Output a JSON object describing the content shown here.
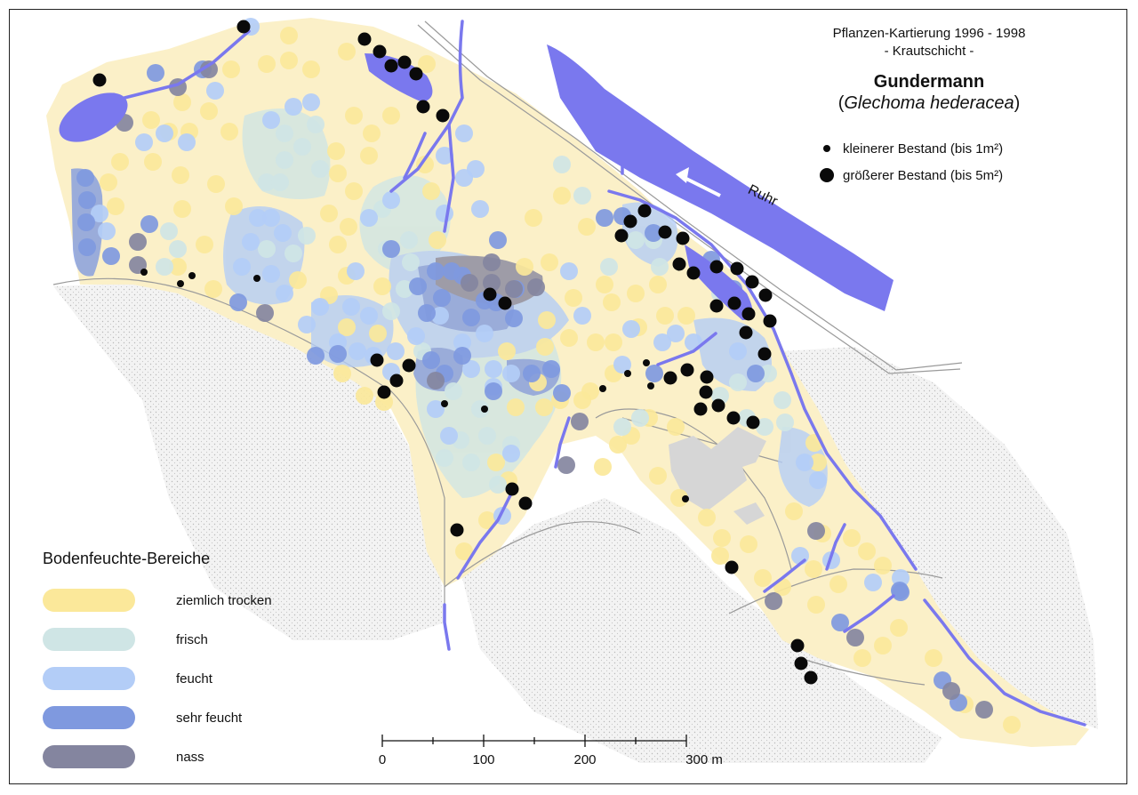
{
  "header": {
    "line1": "Pflanzen-Kartierung 1996 - 1998",
    "line2": "- Krautschicht -",
    "species": "Gundermann",
    "latin_open": "(",
    "latin_name": "Glechoma hederacea",
    "latin_close": ")"
  },
  "dot_legend": [
    {
      "label": "kleinerer Bestand (bis 1m²)",
      "size": "small"
    },
    {
      "label": "größerer Bestand (bis 5m²)",
      "size": "large"
    }
  ],
  "river_label": "Ruhr",
  "moisture_legend": {
    "title": "Bodenfeuchte-Bereiche",
    "items": [
      {
        "label": "ziemlich trocken",
        "color": "#fbe89a"
      },
      {
        "label": "frisch",
        "color": "#cfe5e5"
      },
      {
        "label": "feucht",
        "color": "#b3cdf7"
      },
      {
        "label": "sehr feucht",
        "color": "#7f99df"
      },
      {
        "label": "nass",
        "color": "#84859f"
      }
    ]
  },
  "scale_bar": {
    "labels": [
      "0",
      "100",
      "200",
      "300 m"
    ]
  },
  "colors": {
    "area_fill": "#fbf0c8",
    "water": "#7a78ee",
    "building": "#d6d6d6",
    "dot": "#0a0a0a"
  }
}
